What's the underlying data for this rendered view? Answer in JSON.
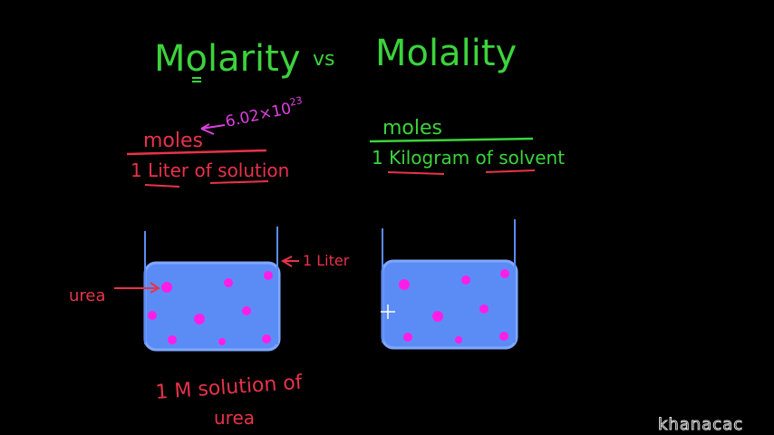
{
  "title": {
    "left": "Molarity",
    "middle": "vs",
    "right": "Molality"
  },
  "molarity": {
    "numerator": "moles",
    "avogadro": {
      "base": "6.02×10",
      "exponent": "23"
    },
    "denominator": "1 Liter of solution",
    "volume_label": "1 Liter",
    "solute_label": "urea",
    "caption": [
      "1 M solution of",
      "urea"
    ]
  },
  "molality": {
    "numerator": "moles",
    "denominator": "1 Kilogram of solvent"
  },
  "watermark": "khanacac"
}
